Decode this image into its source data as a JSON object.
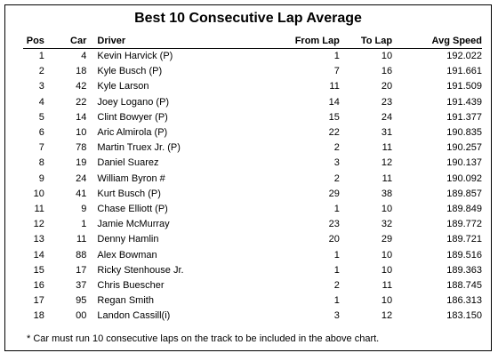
{
  "title": "Best 10 Consecutive Lap Average",
  "columns": [
    "Pos",
    "Car",
    "Driver",
    "From Lap",
    "To Lap",
    "Avg Speed"
  ],
  "rows": [
    {
      "pos": "1",
      "car": "4",
      "driver": "Kevin Harvick (P)",
      "from": "1",
      "to": "10",
      "speed": "192.022"
    },
    {
      "pos": "2",
      "car": "18",
      "driver": "Kyle Busch (P)",
      "from": "7",
      "to": "16",
      "speed": "191.661"
    },
    {
      "pos": "3",
      "car": "42",
      "driver": "Kyle Larson",
      "from": "11",
      "to": "20",
      "speed": "191.509"
    },
    {
      "pos": "4",
      "car": "22",
      "driver": "Joey Logano (P)",
      "from": "14",
      "to": "23",
      "speed": "191.439"
    },
    {
      "pos": "5",
      "car": "14",
      "driver": "Clint Bowyer (P)",
      "from": "15",
      "to": "24",
      "speed": "191.377"
    },
    {
      "pos": "6",
      "car": "10",
      "driver": "Aric Almirola (P)",
      "from": "22",
      "to": "31",
      "speed": "190.835"
    },
    {
      "pos": "7",
      "car": "78",
      "driver": "Martin Truex Jr. (P)",
      "from": "2",
      "to": "11",
      "speed": "190.257"
    },
    {
      "pos": "8",
      "car": "19",
      "driver": "Daniel Suarez",
      "from": "3",
      "to": "12",
      "speed": "190.137"
    },
    {
      "pos": "9",
      "car": "24",
      "driver": "William Byron #",
      "from": "2",
      "to": "11",
      "speed": "190.092"
    },
    {
      "pos": "10",
      "car": "41",
      "driver": "Kurt Busch (P)",
      "from": "29",
      "to": "38",
      "speed": "189.857"
    },
    {
      "pos": "11",
      "car": "9",
      "driver": "Chase Elliott (P)",
      "from": "1",
      "to": "10",
      "speed": "189.849"
    },
    {
      "pos": "12",
      "car": "1",
      "driver": "Jamie McMurray",
      "from": "23",
      "to": "32",
      "speed": "189.772"
    },
    {
      "pos": "13",
      "car": "11",
      "driver": "Denny Hamlin",
      "from": "20",
      "to": "29",
      "speed": "189.721"
    },
    {
      "pos": "14",
      "car": "88",
      "driver": "Alex Bowman",
      "from": "1",
      "to": "10",
      "speed": "189.516"
    },
    {
      "pos": "15",
      "car": "17",
      "driver": "Ricky Stenhouse Jr.",
      "from": "1",
      "to": "10",
      "speed": "189.363"
    },
    {
      "pos": "16",
      "car": "37",
      "driver": "Chris Buescher",
      "from": "2",
      "to": "11",
      "speed": "188.745"
    },
    {
      "pos": "17",
      "car": "95",
      "driver": "Regan Smith",
      "from": "1",
      "to": "10",
      "speed": "186.313"
    },
    {
      "pos": "18",
      "car": "00",
      "driver": "Landon Cassill(i)",
      "from": "3",
      "to": "12",
      "speed": "183.150"
    }
  ],
  "footnote": "* Car must run 10 consecutive laps on the track to be included in the above chart."
}
